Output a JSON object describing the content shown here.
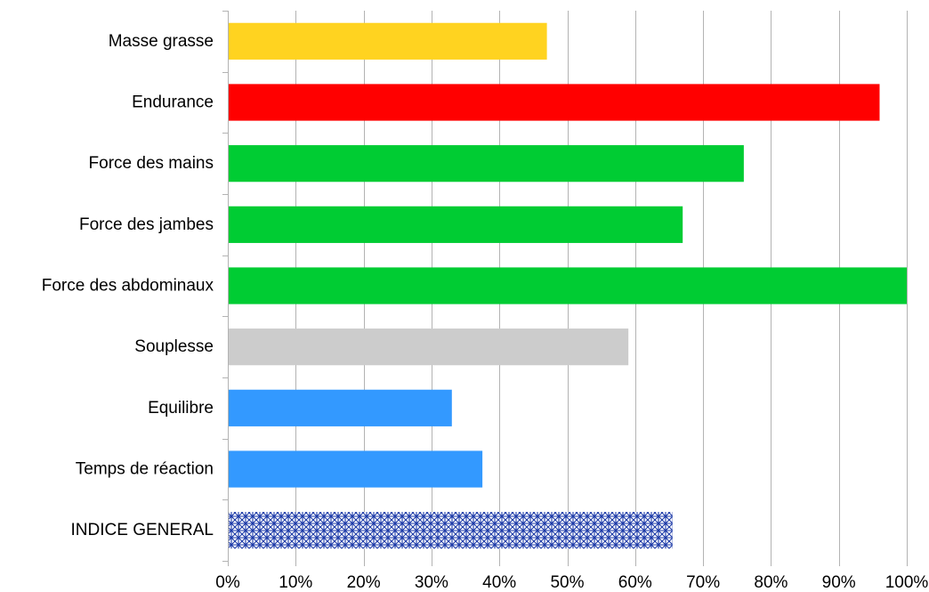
{
  "chart_data": {
    "type": "bar",
    "orientation": "horizontal",
    "categories": [
      "Masse grasse",
      "Endurance",
      "Force des mains",
      "Force des jambes",
      "Force des abdominaux",
      "Souplesse",
      "Equilibre ",
      "Temps de réaction",
      "INDICE GENERAL"
    ],
    "values": [
      0.47,
      0.96,
      0.76,
      0.67,
      1.0,
      0.59,
      0.33,
      0.375,
      0.655
    ],
    "bar_colors": [
      "#ffd320",
      "#ff0000",
      "#00cc33",
      "#00cc33",
      "#00cc33",
      "#cccccc",
      "#3399ff",
      "#3399ff",
      "hatch"
    ],
    "hatch_color": "#1c3aa8",
    "xlim": [
      0,
      1
    ],
    "x_ticks": [
      0,
      0.1,
      0.2,
      0.3,
      0.4,
      0.5,
      0.6,
      0.7,
      0.8,
      0.9,
      1.0
    ],
    "x_tick_labels": [
      "0%",
      "10%",
      "20%",
      "30%",
      "40%",
      "50%",
      "60%",
      "70%",
      "80%",
      "90%",
      "100%"
    ],
    "grid": true,
    "grid_color": "#b3b3b3",
    "legend": "none",
    "title": "",
    "xlabel": "",
    "ylabel": ""
  }
}
